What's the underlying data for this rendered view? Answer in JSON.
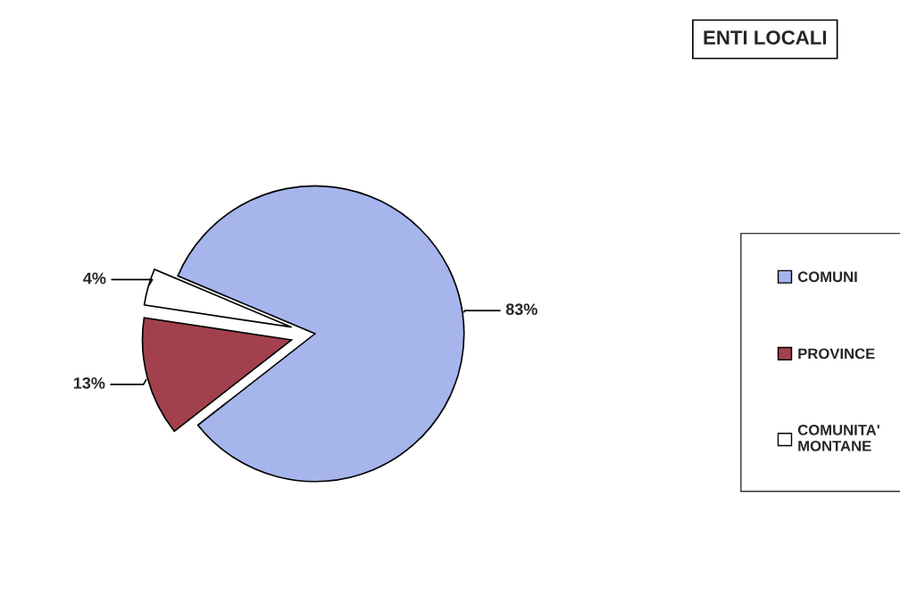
{
  "chart_data": {
    "type": "pie",
    "title": "ENTI LOCALI",
    "categories": [
      "COMUNI",
      "PROVINCE",
      "COMUNITA'\nMONTANE"
    ],
    "values": [
      83,
      13,
      4
    ],
    "colors": [
      "#a6b5ec",
      "#a3404e",
      "#ffffff"
    ],
    "value_labels": [
      "83%",
      "13%",
      "4%"
    ],
    "legend": "right"
  }
}
